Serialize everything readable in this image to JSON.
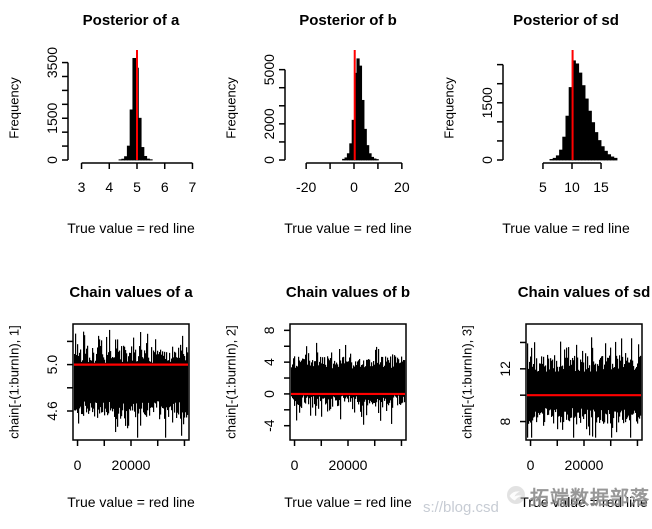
{
  "figure": {
    "background": "#ffffff",
    "plot_color": "#000000",
    "true_value_line_color": "#ff0000",
    "caption_text": "True value = red line"
  },
  "watermark": {
    "brand_text": "拓端数据部落",
    "url_fragment": "s://blog.csd",
    "logo_icon": "swirl-circle-logo",
    "brand_color": "#898989",
    "url_color": "#c7ccd4"
  },
  "chart_data": [
    {
      "type": "hist",
      "title": "Posterior of a",
      "ylabel": "Frequency",
      "caption": "True value = red line",
      "xlim": [
        2.8,
        7.2
      ],
      "xticks": [
        3,
        4,
        5,
        6,
        7
      ],
      "xtick_labels": [
        "3",
        "4",
        "5",
        "6",
        "7"
      ],
      "ylim": [
        0,
        3700
      ],
      "yticks": [
        0,
        500,
        1000,
        1500,
        2000,
        2500,
        3000,
        3500
      ],
      "ytick_labels": [
        "0",
        "",
        "",
        "1500",
        "",
        "",
        "",
        "3500"
      ],
      "bins_start": 4.35,
      "bin_width": 0.1,
      "bin_counts": [
        8,
        30,
        120,
        500,
        1800,
        3650,
        3300,
        1500,
        450,
        130,
        35,
        10
      ],
      "red_line_x": 5.0
    },
    {
      "type": "hist",
      "title": "Posterior of b",
      "ylabel": "Frequency",
      "caption": "True value = red line",
      "xlim": [
        -25.5,
        25.5
      ],
      "xticks": [
        -20,
        -10,
        0,
        10,
        20
      ],
      "xtick_labels": [
        "-20",
        "",
        "0",
        "",
        "20"
      ],
      "ylim": [
        0,
        5700
      ],
      "yticks": [
        0,
        1000,
        2000,
        3000,
        4000,
        5000
      ],
      "ytick_labels": [
        "0",
        "",
        "2000",
        "",
        "",
        "5000"
      ],
      "bins_start": -4.8,
      "bin_width": 1.0,
      "bin_counts": [
        40,
        120,
        350,
        900,
        2200,
        4800,
        5600,
        5200,
        3300,
        1700,
        800,
        350,
        150,
        60,
        25
      ],
      "red_line_x": 0.3
    },
    {
      "type": "hist",
      "title": "Posterior of sd",
      "ylabel": "Frequency",
      "caption": "True value = red line",
      "xlim": [
        -0.5,
        20.5
      ],
      "xticks": [
        5,
        10,
        15
      ],
      "xtick_labels": [
        "5",
        "10",
        "15"
      ],
      "ylim": [
        0,
        2700
      ],
      "yticks": [
        0,
        500,
        1000,
        1500,
        2000,
        2500
      ],
      "ytick_labels": [
        "0",
        "",
        "",
        "1500",
        "",
        ""
      ],
      "bins_start": 6.2,
      "bin_width": 0.55,
      "bin_counts": [
        15,
        45,
        110,
        260,
        600,
        1150,
        1900,
        2600,
        2520,
        2280,
        1950,
        1600,
        1280,
        980,
        720,
        510,
        350,
        230,
        140,
        80,
        45
      ],
      "red_line_x": 10.1
    },
    {
      "type": "trace",
      "title": "Chain values of a",
      "ylabel": "chain[-(1:burnIn), 1]",
      "caption": "True value = red line",
      "xlim": [
        -1700,
        41700
      ],
      "xticks": [
        0,
        10000,
        20000,
        30000,
        40000
      ],
      "xtick_labels": [
        "0",
        "",
        "20000",
        "",
        ""
      ],
      "ylim": [
        4.35,
        5.35
      ],
      "yticks": [
        4.6,
        4.8,
        5.0,
        5.2
      ],
      "ytick_labels": [
        "4.6",
        "",
        "5.0",
        ""
      ],
      "trace_mean": 4.85,
      "trace_base": 0.3,
      "trace_spike": 0.14,
      "red_line_y": 5.0,
      "seed": 11
    },
    {
      "type": "trace",
      "title": "Chain values of b",
      "ylabel": "chain[-(1:burnIn), 2]",
      "caption": "True value = red line",
      "xlim": [
        -1700,
        41700
      ],
      "xticks": [
        0,
        10000,
        20000,
        30000,
        40000
      ],
      "xtick_labels": [
        "0",
        "",
        "20000",
        "",
        ""
      ],
      "ylim": [
        -5.8,
        8.8
      ],
      "yticks": [
        -4,
        -2,
        0,
        2,
        4,
        6,
        8
      ],
      "ytick_labels": [
        "-4",
        "",
        "0",
        "",
        "4",
        "",
        "8"
      ],
      "trace_mean": 1.5,
      "trace_base": 3.1,
      "trace_spike": 1.5,
      "red_line_y": 0.0,
      "seed": 23
    },
    {
      "type": "trace",
      "title": "Chain values of sd",
      "ylabel": "chain[-(1:burnIn), 3]",
      "caption": "True value = red line",
      "xlim": [
        -1700,
        41700
      ],
      "xticks": [
        0,
        10000,
        20000,
        30000,
        40000
      ],
      "xtick_labels": [
        "0",
        "",
        "20000",
        "",
        ""
      ],
      "ylim": [
        6.6,
        15.4
      ],
      "yticks": [
        8,
        10,
        12,
        14
      ],
      "ytick_labels": [
        "8",
        "",
        "12",
        ""
      ],
      "trace_mean": 10.4,
      "trace_base": 2.5,
      "trace_spike": 1.3,
      "red_line_y": 10.0,
      "seed": 37
    }
  ]
}
